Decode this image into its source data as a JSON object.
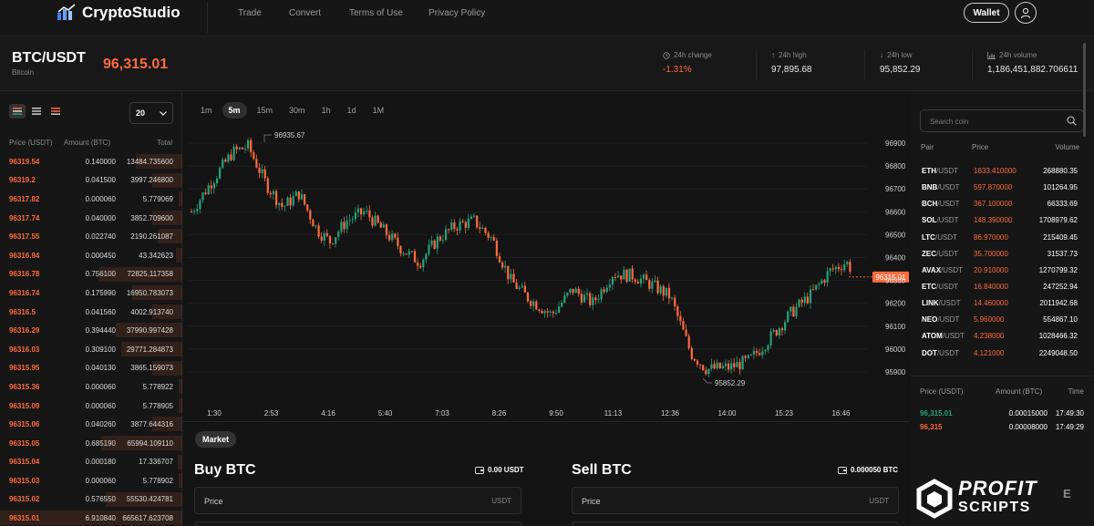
{
  "header": {
    "brand": "CryptoStudio",
    "nav": [
      "Trade",
      "Convert",
      "Terms of Use",
      "Privacy Policy"
    ],
    "wallet_label": "Wallet"
  },
  "ticker": {
    "pair": "BTC/USDT",
    "name": "Bitcoin",
    "last_price": "96,315.01",
    "stats": [
      {
        "label": "24h change",
        "value": "-1.31%",
        "icon": "clock-icon"
      },
      {
        "label": "24h high",
        "value": "97,895.68",
        "icon": "arrow-up-icon"
      },
      {
        "label": "24h low",
        "value": "95,852.29",
        "icon": "arrow-down-icon"
      },
      {
        "label": "24h volume",
        "value": "1,186,451,882.706611",
        "icon": "bar-chart-icon"
      }
    ]
  },
  "orderbook": {
    "depth": "20",
    "headers": {
      "price": "Price (USDT)",
      "amount": "Amount (BTC)",
      "total": "Total"
    },
    "rows": [
      {
        "price": "96319.54",
        "amount": "0.140000",
        "total": "13484.735600"
      },
      {
        "price": "96319.2",
        "amount": "0.041500",
        "total": "3997.246800"
      },
      {
        "price": "96317.82",
        "amount": "0.000060",
        "total": "5.779069"
      },
      {
        "price": "96317.74",
        "amount": "0.040000",
        "total": "3852.709600"
      },
      {
        "price": "96317.55",
        "amount": "0.022740",
        "total": "2190.261087"
      },
      {
        "price": "96316.94",
        "amount": "0.000450",
        "total": "43.342623"
      },
      {
        "price": "96316.78",
        "amount": "0.756100",
        "total": "72825.117358"
      },
      {
        "price": "96316.74",
        "amount": "0.175990",
        "total": "16950.783073"
      },
      {
        "price": "96316.5",
        "amount": "0.041560",
        "total": "4002.913740"
      },
      {
        "price": "96316.29",
        "amount": "0.394440",
        "total": "37990.997428"
      },
      {
        "price": "96316.03",
        "amount": "0.309100",
        "total": "29771.284873"
      },
      {
        "price": "96315.95",
        "amount": "0.040130",
        "total": "3865.159073"
      },
      {
        "price": "96315.36",
        "amount": "0.000060",
        "total": "5.778922"
      },
      {
        "price": "96315.09",
        "amount": "0.000060",
        "total": "5.778905"
      },
      {
        "price": "96315.06",
        "amount": "0.040260",
        "total": "3877.644316"
      },
      {
        "price": "96315.05",
        "amount": "0.685190",
        "total": "65994.109110"
      },
      {
        "price": "96315.04",
        "amount": "0.000180",
        "total": "17.336707"
      },
      {
        "price": "96315.03",
        "amount": "0.000060",
        "total": "5.778902"
      },
      {
        "price": "96315.02",
        "amount": "0.576550",
        "total": "55530.424781"
      },
      {
        "price": "96315.01",
        "amount": "6.910840",
        "total": "665617.623708"
      }
    ]
  },
  "chart": {
    "timeframes": [
      "1m",
      "5m",
      "15m",
      "30m",
      "1h",
      "1d",
      "1M"
    ],
    "active_timeframe": "5m",
    "y_ticks": [
      "96900",
      "96800",
      "96700",
      "96600",
      "96500",
      "96400",
      "96300",
      "96200",
      "96100",
      "96000",
      "95900"
    ],
    "x_ticks": [
      "1:30",
      "2:53",
      "4:16",
      "5:40",
      "7:03",
      "8:26",
      "9:50",
      "11:13",
      "12:36",
      "14:00",
      "15:23",
      "16:46"
    ],
    "current_price_label": "96315.01",
    "high_label": "96935.67",
    "low_label": "95852.29",
    "up_color": "#26a17b",
    "down_color": "#ff6b3d"
  },
  "trade": {
    "order_type": "Market",
    "buy": {
      "title": "Buy BTC",
      "balance": "0.00 USDT",
      "price_label": "Price",
      "price_unit": "USDT"
    },
    "sell": {
      "title": "Sell BTC",
      "balance": "0.000050 BTC",
      "price_label": "Price",
      "price_unit": "USDT"
    }
  },
  "market_list": {
    "search_placeholder": "Search coin",
    "headers": {
      "pair": "Pair",
      "price": "Price",
      "volume": "Volume"
    },
    "quote": "/USDT",
    "rows": [
      {
        "base": "ETH",
        "price": "1833.410000",
        "volume": "268880.35"
      },
      {
        "base": "BNB",
        "price": "597.870000",
        "volume": "101264.95"
      },
      {
        "base": "BCH",
        "price": "367.100000",
        "volume": "66333.69"
      },
      {
        "base": "SOL",
        "price": "148.390000",
        "volume": "1708979.62"
      },
      {
        "base": "LTC",
        "price": "86.970000",
        "volume": "215409.45"
      },
      {
        "base": "ZEC",
        "price": "35.700000",
        "volume": "31537.73"
      },
      {
        "base": "AVAX",
        "price": "20.910000",
        "volume": "1270799.32"
      },
      {
        "base": "ETC",
        "price": "16.840000",
        "volume": "247252.94"
      },
      {
        "base": "LINK",
        "price": "14.460000",
        "volume": "2011942.68"
      },
      {
        "base": "NEO",
        "price": "5.960000",
        "volume": "554867.10"
      },
      {
        "base": "ATOM",
        "price": "4.238000",
        "volume": "1028466.32"
      },
      {
        "base": "DOT",
        "price": "4.121000",
        "volume": "2249048.50"
      }
    ]
  },
  "recent_trades": {
    "headers": {
      "price": "Price (USDT)",
      "amount": "Amount (BTC)",
      "time": "Time"
    },
    "rows": [
      {
        "price": "96,315.01",
        "amount": "0.00015000",
        "time": "17:49:30",
        "side": "buy"
      },
      {
        "price": "96,315",
        "amount": "0.00008000",
        "time": "17:49:29",
        "side": "sell"
      }
    ]
  },
  "watermark": {
    "line1": "PROFIT",
    "line2": "SCRIPTS",
    "extra": "E"
  }
}
